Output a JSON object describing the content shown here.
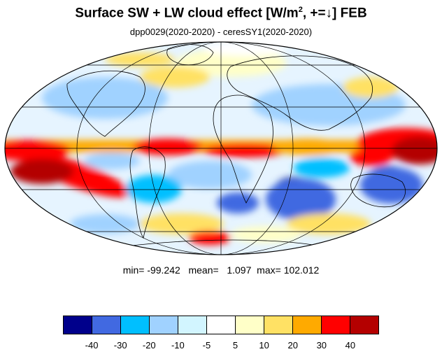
{
  "header": {
    "title_main": "Surface SW + LW cloud effect [W/m",
    "title_sup": "2",
    "title_tail": ", +=↓]  FEB",
    "subtitle": "dpp0029(2020-2020) - ceresSY1(2020-2020)"
  },
  "stats": {
    "min_label": "min=",
    "min_value": "-99.242",
    "mean_label": "mean=",
    "mean_value": "1.097",
    "max_label": "max=",
    "max_value": "102.012"
  },
  "colorbar": {
    "colors": [
      "#00008b",
      "#4169e1",
      "#00bfff",
      "#a0d2ff",
      "#d2f5ff",
      "#ffffff",
      "#ffffc8",
      "#ffe164",
      "#ffaa00",
      "#ff0000",
      "#b40000"
    ],
    "tick_labels": [
      "-40",
      "-30",
      "-20",
      "-10",
      "-5",
      "5",
      "10",
      "20",
      "30",
      "40"
    ]
  },
  "map": {
    "projection": "Mollweide",
    "region": "global",
    "continent_outline_color": "#000000",
    "grid_color": "#000000"
  }
}
